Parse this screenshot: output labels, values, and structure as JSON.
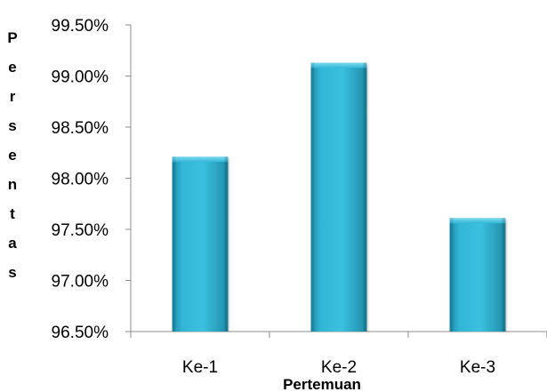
{
  "chart_data": {
    "type": "bar",
    "title": "",
    "categories": [
      "Ke-1",
      "Ke-2",
      "Ke-3"
    ],
    "values": [
      98.21,
      99.13,
      97.61
    ],
    "xlabel": "Pertemuan",
    "ylabel": "Persentas",
    "ylim": [
      96.5,
      99.5
    ],
    "yticks": [
      96.5,
      97.0,
      97.5,
      98.0,
      98.5,
      99.0,
      99.5
    ],
    "ytick_labels": [
      "96.50%",
      "97.00%",
      "97.50%",
      "98.00%",
      "98.50%",
      "99.00%",
      "99.50%"
    ],
    "grid": false,
    "legend": "none",
    "bar_color": "#31B6D6",
    "bar_color_dark": "#1F8EA9",
    "bar_color_light": "#5CCDEA"
  }
}
